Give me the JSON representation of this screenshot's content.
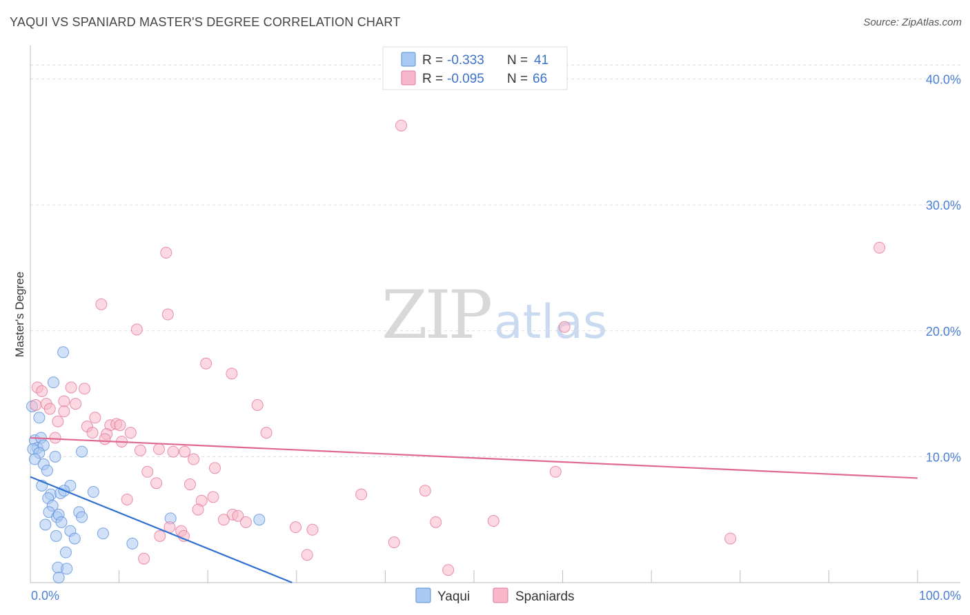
{
  "header": {
    "title": "YAQUI VS SPANIARD MASTER'S DEGREE CORRELATION CHART",
    "source": "Source: ZipAtlas.com"
  },
  "watermark": {
    "zip": "ZIP",
    "atlas": "atlas"
  },
  "legend": {
    "rows": [
      {
        "r_label": "R =",
        "r_value": "-0.333",
        "n_label": "N =",
        "n_value": "41",
        "color": "#a9c8f2"
      },
      {
        "r_label": "R =",
        "r_value": "-0.095",
        "n_label": "N =",
        "n_value": "66",
        "color": "#f7b8cb"
      }
    ]
  },
  "bottom_legend": [
    {
      "label": "Yaqui",
      "color": "#a9c8f2"
    },
    {
      "label": "Spaniards",
      "color": "#f7b8cb"
    }
  ],
  "chart_data": {
    "type": "scatter",
    "title": "YAQUI VS SPANIARD MASTER'S DEGREE CORRELATION CHART",
    "xlabel": "",
    "ylabel": "Master's Degree",
    "xlim": [
      0,
      100
    ],
    "ylim": [
      0,
      42
    ],
    "x_tick_labels": [
      "0.0%",
      "100.0%"
    ],
    "y_ticks": [
      10,
      20,
      30,
      40
    ],
    "y_tick_labels": [
      "10.0%",
      "20.0%",
      "30.0%",
      "40.0%"
    ],
    "grid": true,
    "series": [
      {
        "name": "Yaqui",
        "color": "#5b8fd9",
        "fill": "#a9c8f2",
        "trend": {
          "x": [
            0,
            29.5
          ],
          "y": [
            8.4,
            0
          ]
        },
        "points": [
          [
            0.2,
            14.0
          ],
          [
            1.0,
            13.1
          ],
          [
            0.5,
            11.3
          ],
          [
            1.2,
            11.5
          ],
          [
            0.8,
            10.7
          ],
          [
            1.5,
            10.9
          ],
          [
            0.3,
            10.6
          ],
          [
            1.0,
            10.3
          ],
          [
            0.5,
            9.8
          ],
          [
            1.5,
            9.4
          ],
          [
            1.9,
            8.9
          ],
          [
            1.3,
            7.7
          ],
          [
            2.3,
            7.0
          ],
          [
            2.0,
            6.7
          ],
          [
            2.5,
            6.1
          ],
          [
            2.1,
            5.6
          ],
          [
            3.0,
            5.2
          ],
          [
            3.2,
            5.4
          ],
          [
            1.7,
            4.6
          ],
          [
            3.5,
            4.8
          ],
          [
            4.5,
            4.1
          ],
          [
            2.9,
            3.7
          ],
          [
            5.0,
            3.5
          ],
          [
            4.0,
            2.4
          ],
          [
            3.1,
            1.2
          ],
          [
            4.1,
            1.1
          ],
          [
            3.2,
            0.4
          ],
          [
            3.7,
            18.3
          ],
          [
            2.6,
            15.9
          ],
          [
            5.8,
            10.4
          ],
          [
            4.5,
            7.7
          ],
          [
            7.1,
            7.2
          ],
          [
            5.5,
            5.6
          ],
          [
            5.8,
            5.2
          ],
          [
            8.2,
            3.9
          ],
          [
            11.5,
            3.1
          ],
          [
            15.8,
            5.1
          ],
          [
            25.8,
            5.0
          ],
          [
            3.4,
            7.1
          ],
          [
            3.8,
            7.3
          ],
          [
            2.8,
            10.0
          ]
        ]
      },
      {
        "name": "Spaniards",
        "color": "#e27799",
        "fill": "#f7b8cb",
        "trend": {
          "x": [
            0,
            100
          ],
          "y": [
            11.5,
            8.3
          ]
        },
        "points": [
          [
            41.8,
            36.3
          ],
          [
            95.7,
            26.6
          ],
          [
            15.3,
            26.2
          ],
          [
            8.0,
            22.1
          ],
          [
            15.5,
            21.3
          ],
          [
            12.0,
            20.1
          ],
          [
            60.2,
            20.3
          ],
          [
            19.8,
            17.4
          ],
          [
            22.7,
            16.6
          ],
          [
            0.8,
            15.5
          ],
          [
            1.3,
            15.2
          ],
          [
            4.6,
            15.5
          ],
          [
            6.1,
            15.4
          ],
          [
            0.6,
            14.1
          ],
          [
            1.8,
            14.2
          ],
          [
            3.8,
            14.4
          ],
          [
            5.1,
            14.2
          ],
          [
            2.2,
            13.8
          ],
          [
            3.8,
            13.6
          ],
          [
            7.3,
            13.1
          ],
          [
            25.6,
            14.1
          ],
          [
            3.1,
            12.8
          ],
          [
            6.4,
            12.4
          ],
          [
            9.0,
            12.5
          ],
          [
            9.7,
            12.6
          ],
          [
            10.1,
            12.5
          ],
          [
            7.0,
            11.9
          ],
          [
            8.6,
            11.8
          ],
          [
            11.3,
            11.9
          ],
          [
            26.6,
            11.9
          ],
          [
            2.8,
            11.5
          ],
          [
            8.4,
            11.4
          ],
          [
            10.3,
            11.2
          ],
          [
            14.5,
            10.6
          ],
          [
            12.4,
            10.5
          ],
          [
            16.1,
            10.4
          ],
          [
            17.4,
            10.4
          ],
          [
            18.4,
            9.8
          ],
          [
            20.8,
            9.1
          ],
          [
            13.2,
            8.8
          ],
          [
            59.2,
            8.8
          ],
          [
            14.2,
            7.9
          ],
          [
            18.0,
            7.8
          ],
          [
            37.3,
            7.0
          ],
          [
            44.5,
            7.3
          ],
          [
            10.9,
            6.6
          ],
          [
            20.6,
            6.8
          ],
          [
            19.3,
            6.5
          ],
          [
            18.9,
            5.8
          ],
          [
            22.8,
            5.4
          ],
          [
            23.4,
            5.3
          ],
          [
            21.8,
            5.0
          ],
          [
            24.3,
            4.8
          ],
          [
            45.7,
            4.8
          ],
          [
            52.2,
            4.9
          ],
          [
            15.7,
            4.4
          ],
          [
            29.9,
            4.4
          ],
          [
            31.8,
            4.2
          ],
          [
            17.0,
            4.1
          ],
          [
            17.3,
            3.7
          ],
          [
            14.6,
            3.7
          ],
          [
            41.0,
            3.2
          ],
          [
            78.9,
            3.5
          ],
          [
            12.8,
            1.9
          ],
          [
            31.2,
            2.2
          ],
          [
            47.1,
            1.0
          ]
        ]
      }
    ]
  }
}
